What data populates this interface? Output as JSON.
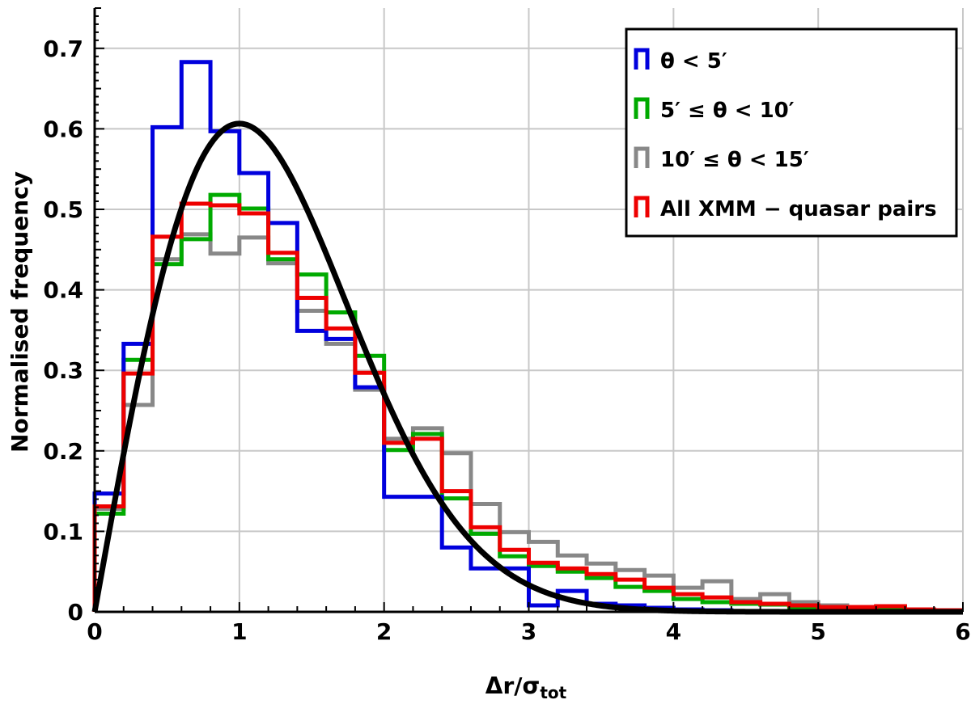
{
  "chart_data": {
    "type": "step-histogram",
    "xlabel": "Δr/σ",
    "xlabel_sub": "tot",
    "ylabel": "Normalised frequency",
    "xlim": [
      0,
      6
    ],
    "ylim": [
      0,
      0.75
    ],
    "x_ticks": [
      "0",
      "1",
      "2",
      "3",
      "4",
      "5",
      "6"
    ],
    "y_ticks": [
      "0",
      "0.1",
      "0.2",
      "0.3",
      "0.4",
      "0.5",
      "0.6",
      "0.7"
    ],
    "grid": true,
    "legend_position": "top-right",
    "bin_edges": [
      0,
      0.2,
      0.4,
      0.6,
      0.8,
      1.0,
      1.2,
      1.4,
      1.6,
      1.8,
      2.0,
      2.2,
      2.4,
      2.6,
      2.8,
      3.0,
      3.2,
      3.4,
      3.6,
      3.8,
      4.0,
      4.2,
      4.4,
      4.6,
      4.8,
      5.0,
      5.2,
      5.4,
      5.6,
      5.8,
      6.0
    ],
    "series": [
      {
        "name": "θ < 5′",
        "color": "#0000dd",
        "values": [
          0.147,
          0.333,
          0.602,
          0.683,
          0.597,
          0.545,
          0.483,
          0.349,
          0.339,
          0.279,
          0.143,
          0.143,
          0.08,
          0.054,
          0.054,
          0.008,
          0.026,
          0.01,
          0.008,
          0.005,
          0.003,
          0.002,
          0.001,
          0.001,
          0.001,
          0.001,
          0.001,
          0.001,
          0.001,
          0.0005
        ]
      },
      {
        "name": "5′ ≤ θ < 10′",
        "color": "#00aa00",
        "values": [
          0.122,
          0.313,
          0.432,
          0.463,
          0.518,
          0.501,
          0.438,
          0.419,
          0.372,
          0.318,
          0.201,
          0.221,
          0.141,
          0.097,
          0.069,
          0.057,
          0.05,
          0.042,
          0.031,
          0.026,
          0.016,
          0.012,
          0.01,
          0.009,
          0.006,
          0.005,
          0.004,
          0.003,
          0.002,
          0.001
        ]
      },
      {
        "name": "10′ ≤ θ < 15′",
        "color": "#888888",
        "values": [
          0.128,
          0.257,
          0.438,
          0.469,
          0.445,
          0.465,
          0.433,
          0.374,
          0.333,
          0.276,
          0.215,
          0.228,
          0.197,
          0.134,
          0.099,
          0.087,
          0.07,
          0.06,
          0.052,
          0.045,
          0.03,
          0.038,
          0.016,
          0.022,
          0.012,
          0.008,
          0.006,
          0.005,
          0.003,
          0.002
        ]
      },
      {
        "name": "All XMM − quasar pairs",
        "color": "#ee0000",
        "values": [
          0.131,
          0.296,
          0.466,
          0.507,
          0.505,
          0.495,
          0.446,
          0.39,
          0.352,
          0.297,
          0.21,
          0.215,
          0.15,
          0.105,
          0.077,
          0.061,
          0.054,
          0.047,
          0.04,
          0.03,
          0.022,
          0.018,
          0.012,
          0.01,
          0.008,
          0.006,
          0.006,
          0.007,
          0.003,
          0.002
        ]
      }
    ],
    "curve": {
      "color": "#000000",
      "function": "x*exp(-x^2/2)"
    }
  }
}
